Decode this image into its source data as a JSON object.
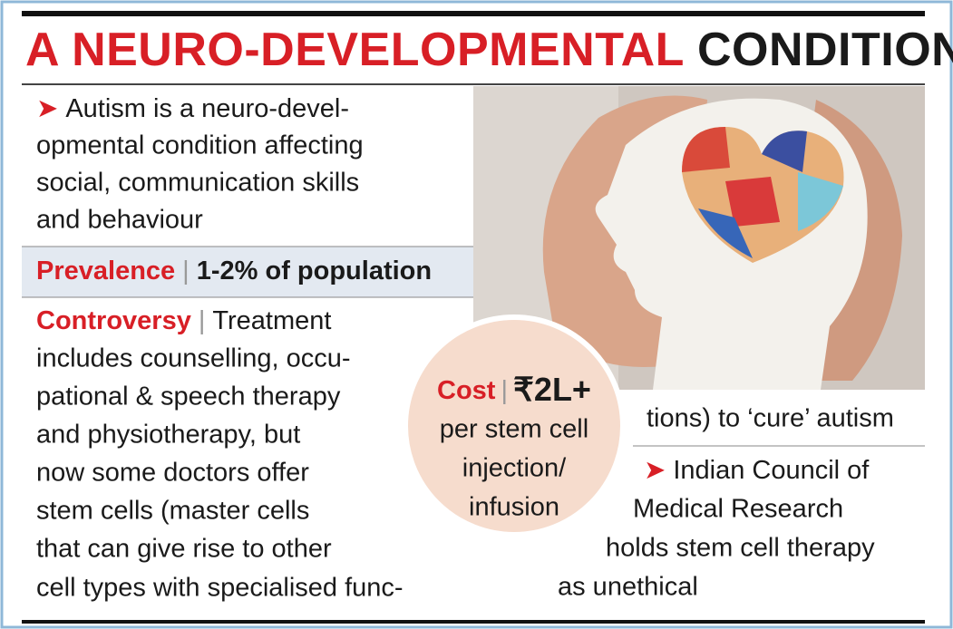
{
  "title": {
    "red": "A NEURO-DEVELOPMENTAL",
    "black": "CONDITION"
  },
  "intro": {
    "marker": "➤",
    "lines": [
      "Autism is a neuro-devel-",
      "opmental condition affecting",
      "social, communication skills",
      "and behaviour"
    ]
  },
  "prevalence": {
    "label": "Prevalence",
    "separator": "|",
    "value": "1-2% of population"
  },
  "controversy": {
    "label": "Controversy",
    "separator": "|",
    "lines": [
      "Treatment",
      "includes counselling, occu-",
      "pational & speech therapy",
      "and physiotherapy, but",
      "now some doctors offer",
      "stem cells (master cells",
      "that can give rise to other",
      "cell types with specialised func-"
    ]
  },
  "cost": {
    "label": "Cost",
    "separator": "|",
    "value": "₹2L+",
    "lines": [
      "per stem cell",
      "injection/",
      "infusion"
    ]
  },
  "continuation": "tions) to ‘cure’ autism",
  "icmr": {
    "marker": "➤",
    "lines": [
      "Indian Council of",
      "Medical Research",
      "holds stem cell therapy",
      "as unethical"
    ]
  }
}
